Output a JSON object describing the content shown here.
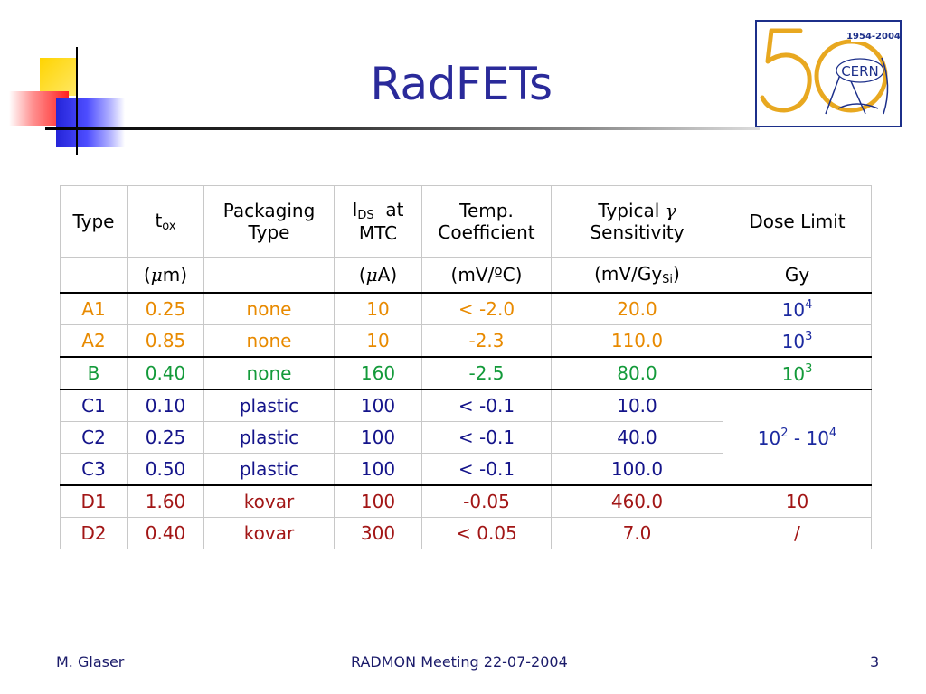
{
  "slide": {
    "title": "RadFETs",
    "logo": {
      "years": "1954-2004",
      "number": "50",
      "name": "CERN"
    },
    "footer": {
      "author": "M. Glaser",
      "event": "RADMON Meeting 22-07-2004",
      "page": "3"
    }
  },
  "table": {
    "headers": {
      "type": "Type",
      "tox_main": "t",
      "tox_sub": "ox",
      "packaging_line1": "Packaging",
      "packaging_line2": "Type",
      "ids_main": "I",
      "ids_sub": "DS",
      "ids_at": "at",
      "ids_line2": "MTC",
      "temp_line1": "Temp.",
      "temp_line2": "Coefficient",
      "typical_line1": "Typical",
      "typical_greek": "γ",
      "typical_line2": "Sensitivity",
      "dose": "Dose Limit"
    },
    "units": {
      "tox_open": "(",
      "tox_mu": "μ",
      "tox_close": "m)",
      "ids_open": "(",
      "ids_mu": "μ",
      "ids_close": "A)",
      "temp": "(mV/ºC)",
      "sens_main": "(mV/Gy",
      "sens_sub": "Si",
      "sens_close": ")",
      "dose": "Gy"
    },
    "rows": [
      {
        "type": "A1",
        "tox": "0.25",
        "packaging": "none",
        "ids": "10",
        "temp": "< -2.0",
        "sensitivity": "20.0",
        "dose_base": "10",
        "dose_exp": "4"
      },
      {
        "type": "A2",
        "tox": "0.85",
        "packaging": "none",
        "ids": "10",
        "temp": "-2.3",
        "sensitivity": "110.0",
        "dose_base": "10",
        "dose_exp": "3"
      },
      {
        "type": "B",
        "tox": "0.40",
        "packaging": "none",
        "ids": "160",
        "temp": "-2.5",
        "sensitivity": "80.0",
        "dose_base": "10",
        "dose_exp": "3"
      },
      {
        "type": "C1",
        "tox": "0.10",
        "packaging": "plastic",
        "ids": "100",
        "temp": "< -0.1",
        "sensitivity": "10.0"
      },
      {
        "type": "C2",
        "tox": "0.25",
        "packaging": "plastic",
        "ids": "100",
        "temp": "< -0.1",
        "sensitivity": "40.0"
      },
      {
        "type": "C3",
        "tox": "0.50",
        "packaging": "plastic",
        "ids": "100",
        "temp": "< -0.1",
        "sensitivity": "100.0"
      },
      {
        "type": "D1",
        "tox": "1.60",
        "packaging": "kovar",
        "ids": "100",
        "temp": "-0.05",
        "sensitivity": "460.0",
        "dose": "10"
      },
      {
        "type": "D2",
        "tox": "0.40",
        "packaging": "kovar",
        "ids": "300",
        "temp": "< 0.05",
        "sensitivity": "7.0",
        "dose": "/"
      }
    ],
    "c_group_dose": {
      "base1": "10",
      "exp1": "2",
      "dash": " - ",
      "base2": "10",
      "exp2": "4"
    }
  },
  "colors": {
    "title": "#2a2a9a",
    "group_a": "#e88a00",
    "group_b": "#139a3a",
    "group_c": "#14148a",
    "group_d": "#a21616",
    "dose_limit": "#1c2aa0",
    "logo_gold": "#e8a820",
    "logo_blue": "#1c2f8a"
  }
}
